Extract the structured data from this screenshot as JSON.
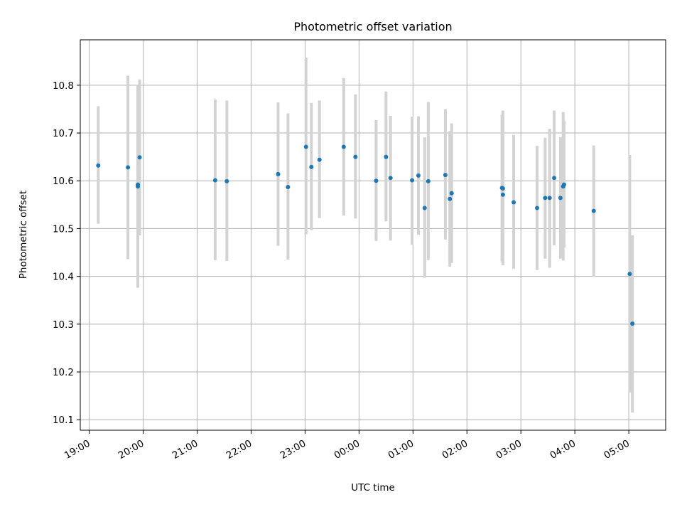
{
  "chart_data": {
    "type": "scatter",
    "title": "Photometric offset variation",
    "xlabel": "UTC time",
    "ylabel": "Photometric offset",
    "grid": true,
    "legend": "none",
    "xlim": [
      "18:50",
      "29:41"
    ],
    "ylim": [
      10.078,
      10.895
    ],
    "x_ticks": [
      "19:00",
      "20:00",
      "21:00",
      "22:00",
      "23:00",
      "00:00",
      "01:00",
      "02:00",
      "03:00",
      "04:00",
      "05:00"
    ],
    "y_ticks": [
      "10.1",
      "10.2",
      "10.3",
      "10.4",
      "10.5",
      "10.6",
      "10.7",
      "10.8"
    ],
    "colors": {
      "point": "#1f77b4",
      "errorbar": "#d3d3d3",
      "grid": "#b0b0b0"
    },
    "series": [
      {
        "points": [
          {
            "x": "19:10",
            "y": 10.632,
            "lo": 10.51,
            "hi": 10.756
          },
          {
            "x": "19:43",
            "y": 10.628,
            "lo": 10.436,
            "hi": 10.82
          },
          {
            "x": "19:54",
            "y": 10.592,
            "lo": 10.386,
            "hi": 10.798
          },
          {
            "x": "19:54",
            "y": 10.588,
            "lo": 10.376,
            "hi": 10.8
          },
          {
            "x": "19:56",
            "y": 10.649,
            "lo": 10.486,
            "hi": 10.812
          },
          {
            "x": "21:20",
            "y": 10.601,
            "lo": 10.434,
            "hi": 10.77
          },
          {
            "x": "21:33",
            "y": 10.599,
            "lo": 10.432,
            "hi": 10.768
          },
          {
            "x": "22:30",
            "y": 10.614,
            "lo": 10.464,
            "hi": 10.764
          },
          {
            "x": "22:41",
            "y": 10.587,
            "lo": 10.435,
            "hi": 10.741
          },
          {
            "x": "23:01",
            "y": 10.671,
            "lo": 10.488,
            "hi": 10.858
          },
          {
            "x": "23:07",
            "y": 10.629,
            "lo": 10.497,
            "hi": 10.763
          },
          {
            "x": "23:16",
            "y": 10.644,
            "lo": 10.522,
            "hi": 10.768
          },
          {
            "x": "23:43",
            "y": 10.671,
            "lo": 10.527,
            "hi": 10.815
          },
          {
            "x": "23:56",
            "y": 10.65,
            "lo": 10.521,
            "hi": 10.781
          },
          {
            "x": "00:19",
            "y": 10.6,
            "lo": 10.474,
            "hi": 10.727
          },
          {
            "x": "00:30",
            "y": 10.65,
            "lo": 10.515,
            "hi": 10.787
          },
          {
            "x": "00:35",
            "y": 10.606,
            "lo": 10.475,
            "hi": 10.736
          },
          {
            "x": "00:59",
            "y": 10.601,
            "lo": 10.466,
            "hi": 10.734
          },
          {
            "x": "01:06",
            "y": 10.611,
            "lo": 10.487,
            "hi": 10.735
          },
          {
            "x": "01:13",
            "y": 10.543,
            "lo": 10.397,
            "hi": 10.691
          },
          {
            "x": "01:17",
            "y": 10.599,
            "lo": 10.434,
            "hi": 10.765
          },
          {
            "x": "01:36",
            "y": 10.612,
            "lo": 10.477,
            "hi": 10.75
          },
          {
            "x": "01:41",
            "y": 10.562,
            "lo": 10.42,
            "hi": 10.704
          },
          {
            "x": "01:43",
            "y": 10.574,
            "lo": 10.428,
            "hi": 10.72
          },
          {
            "x": "02:39",
            "y": 10.585,
            "lo": 10.431,
            "hi": 10.738
          },
          {
            "x": "02:40",
            "y": 10.571,
            "lo": 10.423,
            "hi": 10.747
          },
          {
            "x": "02:40",
            "y": 10.584,
            "lo": 10.425,
            "hi": 10.745
          },
          {
            "x": "02:52",
            "y": 10.555,
            "lo": 10.416,
            "hi": 10.696
          },
          {
            "x": "03:18",
            "y": 10.543,
            "lo": 10.413,
            "hi": 10.673
          },
          {
            "x": "03:27",
            "y": 10.564,
            "lo": 10.437,
            "hi": 10.69
          },
          {
            "x": "03:32",
            "y": 10.564,
            "lo": 10.418,
            "hi": 10.709
          },
          {
            "x": "03:37",
            "y": 10.606,
            "lo": 10.465,
            "hi": 10.747
          },
          {
            "x": "03:44",
            "y": 10.564,
            "lo": 10.437,
            "hi": 10.691
          },
          {
            "x": "03:47",
            "y": 10.588,
            "lo": 10.433,
            "hi": 10.744
          },
          {
            "x": "03:48",
            "y": 10.592,
            "lo": 10.46,
            "hi": 10.725
          },
          {
            "x": "04:21",
            "y": 10.537,
            "lo": 10.399,
            "hi": 10.674
          },
          {
            "x": "05:01",
            "y": 10.405,
            "lo": 10.157,
            "hi": 10.654
          },
          {
            "x": "05:04",
            "y": 10.301,
            "lo": 10.115,
            "hi": 10.486
          }
        ]
      }
    ]
  }
}
